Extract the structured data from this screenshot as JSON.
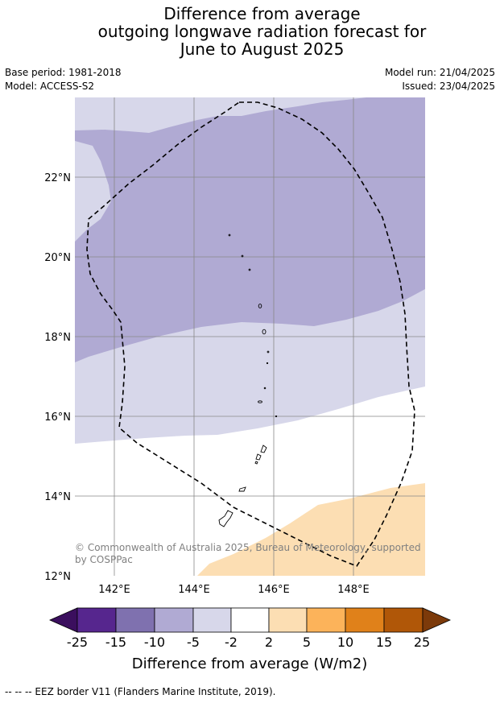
{
  "title": {
    "line1": "Difference from average",
    "line2": "outgoing longwave radiation forecast for",
    "line3": "June to August 2025"
  },
  "meta": {
    "base_period": "Base period: 1981-2018",
    "model": "Model: ACCESS-S2",
    "model_run": "Model run: 21/04/2025",
    "issued": "Issued: 23/04/2025"
  },
  "map": {
    "lat_labels": [
      "22°N",
      "20°N",
      "18°N",
      "16°N",
      "14°N",
      "12°N"
    ],
    "lon_labels": [
      "142°E",
      "144°E",
      "146°E",
      "148°E"
    ],
    "copyright_line1": "© Commonwealth of Australia 2025, Bureau of Meteorology, supported",
    "copyright_line2": "by COSPPac",
    "region_colors": {
      "light_purple": "#d7d7ea",
      "mid_purple": "#b0aad3",
      "light_orange": "#fcdeb3"
    }
  },
  "colorbar": {
    "label": "Difference from average (W/m2)",
    "ticks": [
      "-25",
      "-15",
      "-10",
      "-5",
      "-2",
      "2",
      "5",
      "10",
      "15",
      "25"
    ],
    "colors": [
      "#3b0f5e",
      "#56268e",
      "#7f71af",
      "#b0aad3",
      "#d7d7ea",
      "#ffffff",
      "#fcdeb3",
      "#fcb35a",
      "#e0811a",
      "#b05708",
      "#7c3a0a"
    ]
  },
  "footer": "--  --  -- EEZ border V11 (Flanders Marine Institute, 2019)."
}
